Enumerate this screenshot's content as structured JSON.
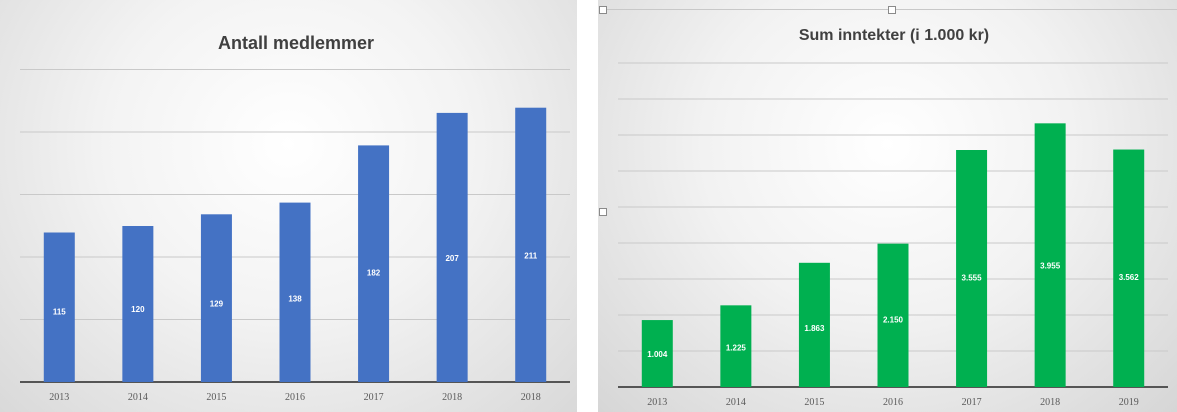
{
  "chart_data": [
    {
      "type": "bar",
      "title": "Antall medlemmer",
      "categories": [
        "2013",
        "2014",
        "2015",
        "2016",
        "2017",
        "2018",
        "2018"
      ],
      "values": [
        115,
        120,
        129,
        138,
        182,
        207,
        211
      ],
      "data_labels": [
        "115",
        "120",
        "129",
        "138",
        "182",
        "207",
        "211"
      ],
      "ylim": [
        0,
        250
      ],
      "gridlines": true,
      "color": "#4472c4"
    },
    {
      "type": "bar",
      "title": "Sum inntekter (i 1.000 kr)",
      "categories": [
        "2013",
        "2014",
        "2015",
        "2016",
        "2017",
        "2018",
        "2019"
      ],
      "values": [
        1004,
        1225,
        1863,
        2150,
        3555,
        3955,
        3562
      ],
      "data_labels": [
        "1.004",
        "1.225",
        "1.863",
        "2.150",
        "3.555",
        "3.955",
        "3.562"
      ],
      "ylim": [
        0,
        4500
      ],
      "gridlines": true,
      "color": "#00b050"
    }
  ]
}
